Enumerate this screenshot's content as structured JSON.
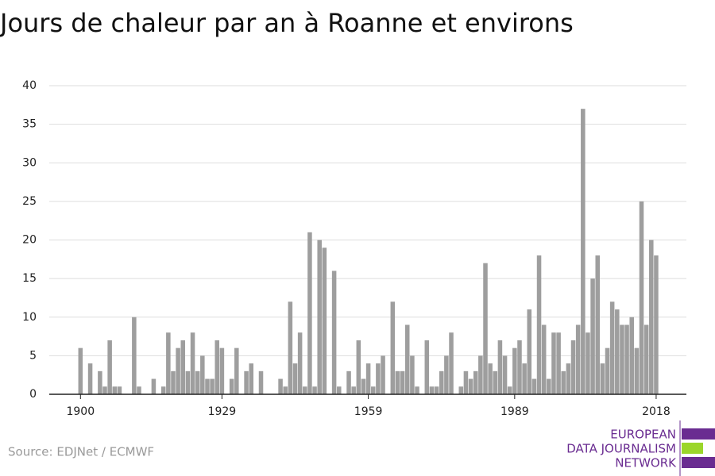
{
  "chart_data": {
    "type": "bar",
    "title": "Jours de chaleur par an à Roanne et environs",
    "source": "Source: EDJNet / ECMWF",
    "logo": [
      "EUROPEAN",
      "DATA JOURNALISM",
      "NETWORK"
    ],
    "color": "#9e9e9e",
    "x": [
      1900,
      1901,
      1902,
      1903,
      1904,
      1905,
      1906,
      1907,
      1908,
      1909,
      1910,
      1911,
      1912,
      1913,
      1914,
      1915,
      1916,
      1917,
      1918,
      1919,
      1920,
      1921,
      1922,
      1923,
      1924,
      1925,
      1926,
      1927,
      1928,
      1929,
      1930,
      1931,
      1932,
      1933,
      1934,
      1935,
      1936,
      1937,
      1938,
      1939,
      1940,
      1941,
      1942,
      1943,
      1944,
      1945,
      1946,
      1947,
      1948,
      1949,
      1950,
      1951,
      1952,
      1953,
      1954,
      1955,
      1956,
      1957,
      1958,
      1959,
      1960,
      1961,
      1962,
      1963,
      1964,
      1965,
      1966,
      1967,
      1968,
      1969,
      1970,
      1971,
      1972,
      1973,
      1974,
      1975,
      1976,
      1977,
      1978,
      1979,
      1980,
      1981,
      1982,
      1983,
      1984,
      1985,
      1986,
      1987,
      1988,
      1989,
      1990,
      1991,
      1992,
      1993,
      1994,
      1995,
      1996,
      1997,
      1998,
      1999,
      2000,
      2001,
      2002,
      2003,
      2004,
      2005,
      2006,
      2007,
      2008,
      2009,
      2010,
      2011,
      2012,
      2013,
      2014,
      2015,
      2016,
      2017,
      2018
    ],
    "values": [
      6,
      0,
      4,
      0,
      3,
      1,
      7,
      1,
      1,
      0,
      0,
      10,
      1,
      0,
      0,
      2,
      0,
      1,
      8,
      3,
      6,
      7,
      3,
      8,
      3,
      5,
      2,
      2,
      7,
      6,
      0,
      2,
      6,
      0,
      3,
      4,
      0,
      3,
      0,
      0,
      0,
      2,
      1,
      12,
      4,
      8,
      1,
      21,
      1,
      20,
      19,
      0,
      16,
      1,
      0,
      3,
      1,
      7,
      2,
      4,
      1,
      4,
      5,
      0,
      12,
      3,
      3,
      9,
      5,
      1,
      0,
      7,
      1,
      1,
      3,
      5,
      8,
      0,
      1,
      3,
      2,
      3,
      5,
      17,
      4,
      3,
      7,
      5,
      1,
      6,
      7,
      4,
      11,
      2,
      18,
      9,
      2,
      8,
      8,
      3,
      4,
      7,
      9,
      37,
      8,
      15,
      18,
      4,
      6,
      12,
      11,
      9,
      9,
      10,
      6,
      25,
      9,
      20,
      18
    ],
    "xlim": [
      1893.6,
      2024.2
    ],
    "xticks": [
      1900,
      1929,
      1959,
      1989,
      2018
    ],
    "ylim": [
      0,
      40
    ],
    "yticks": [
      0,
      5,
      10,
      15,
      20,
      25,
      30,
      35,
      40
    ],
    "grid": true
  }
}
